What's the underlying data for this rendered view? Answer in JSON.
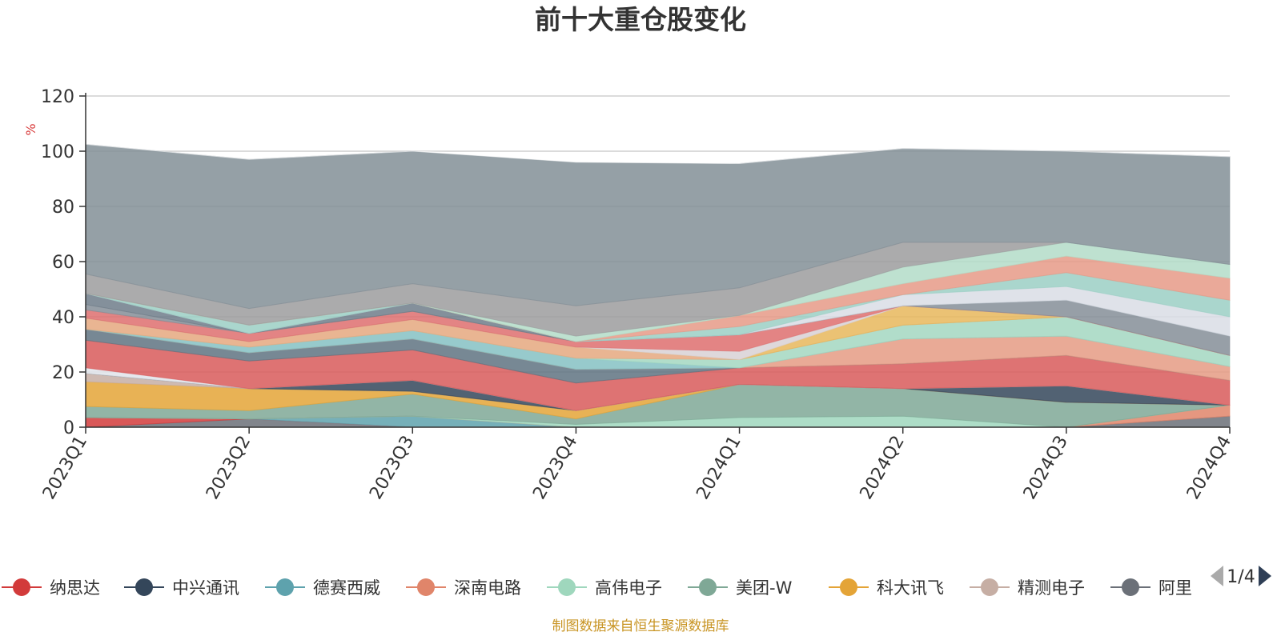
{
  "chart_data": {
    "type": "area",
    "title": "前十大重仓股变化",
    "y_unit": "%",
    "ylim": [
      0,
      120
    ],
    "yticks": [
      "0",
      "20",
      "40",
      "60",
      "80",
      "100",
      "120"
    ],
    "categories": [
      "2023Q1",
      "2023Q2",
      "2023Q3",
      "2023Q4",
      "2024Q1",
      "2024Q2",
      "2024Q3",
      "2024Q4"
    ],
    "grid": true,
    "legend_position": "bottom",
    "legend_page": "1/4",
    "stacked": true,
    "series": [
      {
        "name": "阿里",
        "color": "#6b7078",
        "values": [
          0,
          3,
          0,
          0,
          0,
          0,
          0,
          4
        ]
      },
      {
        "name": "纳思达",
        "color": "#d23b3b",
        "values": [
          3.5,
          0,
          0,
          0,
          0,
          0,
          0,
          0
        ]
      },
      {
        "name": "德赛西威",
        "color": "#5ea2ad",
        "values": [
          0,
          0,
          4,
          0,
          0,
          0,
          0,
          0
        ]
      },
      {
        "name": "深南电路",
        "color": "#e0856a",
        "values": [
          0,
          0,
          0,
          0,
          0,
          0,
          0,
          4
        ]
      },
      {
        "name": "高伟电子",
        "color": "#9fd7bd",
        "values": [
          0,
          0,
          0,
          1,
          3.5,
          4,
          0,
          0
        ]
      },
      {
        "name": "美团-W",
        "color": "#7fa896",
        "values": [
          4,
          3,
          8,
          2,
          12,
          10,
          9,
          0
        ]
      },
      {
        "name": "科大讯飞",
        "color": "#e4a437",
        "values": [
          9,
          8,
          1,
          3,
          0,
          0,
          0,
          0
        ]
      },
      {
        "name": "精测电子",
        "color": "#c6aea4",
        "values": [
          3,
          0,
          0,
          0,
          0,
          0,
          0,
          0
        ]
      },
      {
        "name": "中兴通讯",
        "color": "#34465a",
        "values": [
          0,
          0,
          4,
          0,
          0,
          0,
          6,
          0
        ]
      },
      {
        "name": "",
        "color": "#e1e4ea",
        "values": [
          2,
          0,
          0,
          0,
          0,
          0,
          0,
          0
        ]
      },
      {
        "name": "",
        "color": "#d85a5a",
        "values": [
          10,
          10,
          11,
          10,
          6,
          9,
          11,
          9
        ]
      },
      {
        "name": "",
        "color": "#5f7381",
        "values": [
          4,
          3,
          4,
          5,
          0,
          0,
          0,
          0
        ]
      },
      {
        "name": "",
        "color": "#e59b84",
        "values": [
          0,
          0,
          0,
          0,
          0,
          9,
          7,
          5
        ]
      },
      {
        "name": "",
        "color": "#85c1c3",
        "values": [
          0,
          2,
          3,
          4,
          0,
          0,
          0,
          0
        ]
      },
      {
        "name": "",
        "color": "#a3d7c1",
        "values": [
          0,
          0,
          0,
          0,
          3,
          5,
          7,
          4
        ]
      },
      {
        "name": "",
        "color": "#e5a87f",
        "values": [
          4,
          2,
          4,
          4,
          0,
          0,
          0,
          0
        ]
      },
      {
        "name": "",
        "color": "#e7b75c",
        "values": [
          0,
          0,
          0,
          0,
          0,
          7,
          0,
          0
        ]
      },
      {
        "name": "",
        "color": "#d8d1d5",
        "values": [
          0,
          0,
          0,
          0,
          3,
          0,
          0,
          0
        ]
      },
      {
        "name": "",
        "color": "#de6e6e",
        "values": [
          3,
          3,
          3,
          2,
          6,
          0,
          0,
          0
        ]
      },
      {
        "name": "",
        "color": "#858e98",
        "values": [
          2,
          0,
          0,
          0,
          0,
          0,
          6,
          7
        ]
      },
      {
        "name": "",
        "color": "#6f7d89",
        "values": [
          4,
          0,
          3,
          0,
          0,
          0,
          0,
          0
        ]
      },
      {
        "name": "",
        "color": "#d9dde5",
        "values": [
          0,
          0,
          0,
          0,
          0,
          4,
          5,
          7
        ]
      },
      {
        "name": "",
        "color": "#9bcfc4",
        "values": [
          0,
          3,
          0,
          0,
          3,
          0,
          5,
          6
        ]
      },
      {
        "name": "",
        "color": "#e69a87",
        "values": [
          0,
          0,
          0,
          0,
          4,
          4,
          6,
          8
        ]
      },
      {
        "name": "",
        "color": "#b3dcc8",
        "values": [
          0,
          0,
          0,
          2,
          0,
          6,
          5,
          5
        ]
      },
      {
        "name": "",
        "color": "#9c9c9e",
        "values": [
          7,
          6,
          7,
          11,
          10,
          9,
          0,
          0
        ]
      },
      {
        "name": "",
        "color": "#838f97",
        "values": [
          47,
          54,
          48,
          52,
          45,
          34,
          33,
          39
        ]
      },
      {
        "name": "",
        "color": "#ffffff",
        "values": [
          0,
          0,
          0,
          2,
          0,
          0,
          0,
          0
        ]
      }
    ]
  },
  "legend": {
    "items": [
      {
        "name": "纳思达",
        "color": "#d23b3b"
      },
      {
        "name": "中兴通讯",
        "color": "#34465a"
      },
      {
        "name": "德赛西威",
        "color": "#5ea2ad"
      },
      {
        "name": "深南电路",
        "color": "#e0856a"
      },
      {
        "name": "高伟电子",
        "color": "#9fd7bd"
      },
      {
        "name": "美团-W",
        "color": "#7fa896"
      },
      {
        "name": "科大讯飞",
        "color": "#e4a437"
      },
      {
        "name": "精测电子",
        "color": "#c6aea4"
      },
      {
        "name": "阿里",
        "color": "#6b7078"
      }
    ],
    "page_text": "1/4"
  },
  "footer": {
    "source": "制图数据来自恒生聚源数据库"
  }
}
